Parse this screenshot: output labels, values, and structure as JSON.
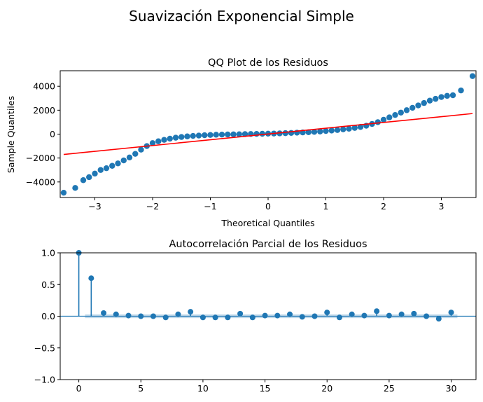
{
  "figure": {
    "suptitle": "Suavización Exponencial Simple",
    "colors": {
      "points": "#1f77b4",
      "ref_line": "#ff0000",
      "band": "#1f77b4"
    }
  },
  "chart_data": [
    {
      "type": "scatter",
      "title": "QQ Plot de los Residuos",
      "xlabel": "Theoretical Quantiles",
      "ylabel": "Sample Quantiles",
      "xlim": [
        -3.6,
        3.6
      ],
      "ylim": [
        -5300,
        5300
      ],
      "xticks": [
        -3,
        -2,
        -1,
        0,
        1,
        2,
        3
      ],
      "xtick_labels": [
        "−3",
        "−2",
        "−1",
        "0",
        "1",
        "2",
        "3"
      ],
      "yticks": [
        -4000,
        -2000,
        0,
        2000,
        4000
      ],
      "ytick_labels": [
        "−4000",
        "−2000",
        "0",
        "2000",
        "4000"
      ],
      "reference_line": {
        "x": [
          -3.54,
          3.54
        ],
        "y": [
          -1700,
          1720
        ]
      },
      "series": [
        {
          "x": [
            -3.54,
            -3.34,
            -3.2,
            -3.1,
            -3.0,
            -2.9,
            -2.8,
            -2.7,
            -2.6,
            -2.5,
            -2.4,
            -2.3,
            -2.2,
            -2.1,
            -2.0,
            -1.9,
            -1.8,
            -1.7,
            -1.6,
            -1.5,
            -1.4,
            -1.3,
            -1.2,
            -1.1,
            -1.0,
            -0.9,
            -0.8,
            -0.7,
            -0.6,
            -0.5,
            -0.4,
            -0.3,
            -0.2,
            -0.1,
            0.0,
            0.1,
            0.2,
            0.3,
            0.4,
            0.5,
            0.6,
            0.7,
            0.8,
            0.9,
            1.0,
            1.1,
            1.2,
            1.3,
            1.4,
            1.5,
            1.6,
            1.7,
            1.8,
            1.9,
            2.0,
            2.1,
            2.2,
            2.3,
            2.4,
            2.5,
            2.6,
            2.7,
            2.8,
            2.9,
            3.0,
            3.1,
            3.2,
            3.34,
            3.54
          ],
          "y": [
            -4900,
            -4500,
            -3850,
            -3600,
            -3300,
            -3000,
            -2850,
            -2650,
            -2450,
            -2200,
            -1950,
            -1650,
            -1300,
            -1000,
            -750,
            -600,
            -480,
            -380,
            -300,
            -240,
            -190,
            -150,
            -120,
            -90,
            -70,
            -50,
            -40,
            -30,
            -20,
            -10,
            0,
            10,
            20,
            30,
            40,
            50,
            60,
            80,
            100,
            120,
            140,
            160,
            190,
            220,
            260,
            300,
            340,
            400,
            450,
            520,
            600,
            700,
            850,
            1000,
            1200,
            1400,
            1600,
            1800,
            2000,
            2200,
            2400,
            2600,
            2800,
            2950,
            3100,
            3200,
            3250,
            3650,
            4850
          ]
        }
      ]
    },
    {
      "type": "bar",
      "title": "Autocorrelación Parcial de los Residuos",
      "xlabel": "",
      "ylabel": "",
      "xlim": [
        -1.5,
        32
      ],
      "ylim": [
        -1.0,
        1.0
      ],
      "xticks": [
        0,
        5,
        10,
        15,
        20,
        25,
        30
      ],
      "xtick_labels": [
        "0",
        "5",
        "10",
        "15",
        "20",
        "25",
        "30"
      ],
      "yticks": [
        -1.0,
        -0.5,
        0.0,
        0.5,
        1.0
      ],
      "ytick_labels": [
        "−1.0",
        "−0.5",
        "0.0",
        "0.5",
        "1.0"
      ],
      "confidence_band": [
        -0.03,
        0.03
      ],
      "series": [
        {
          "x": [
            0,
            1,
            2,
            3,
            4,
            5,
            6,
            7,
            8,
            9,
            10,
            11,
            12,
            13,
            14,
            15,
            16,
            17,
            18,
            19,
            20,
            21,
            22,
            23,
            24,
            25,
            26,
            27,
            28,
            29,
            30
          ],
          "values": [
            1.0,
            0.6,
            0.05,
            0.03,
            0.01,
            0.0,
            0.0,
            -0.02,
            0.03,
            0.07,
            -0.02,
            -0.02,
            -0.02,
            0.04,
            -0.02,
            0.01,
            0.01,
            0.03,
            -0.01,
            0.0,
            0.06,
            -0.02,
            0.03,
            0.01,
            0.08,
            0.01,
            0.03,
            0.04,
            0.0,
            -0.04,
            0.06
          ]
        }
      ]
    }
  ]
}
